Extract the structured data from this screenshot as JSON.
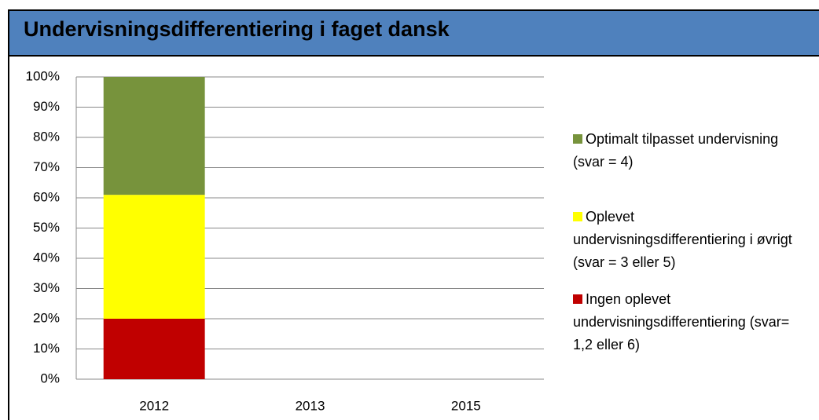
{
  "chart_data": {
    "type": "stacked_bar",
    "title": "Undervisningsdifferentiering i faget dansk",
    "categories": [
      "2012",
      "2013",
      "2015"
    ],
    "series": [
      {
        "name": "Ingen oplevet undervisningsdifferentiering (svar= 1,2 eller 6)",
        "color": "#c00000",
        "values": [
          20,
          null,
          null
        ]
      },
      {
        "name": "Oplevet undervisningsdifferentiering i øvrigt (svar = 3 eller 5)",
        "color": "#ffff00",
        "values": [
          41,
          null,
          null
        ]
      },
      {
        "name": "Optimalt tilpasset undervisning (svar = 4)",
        "color": "#77933c",
        "values": [
          39,
          null,
          null
        ]
      }
    ],
    "ylim": [
      0,
      100
    ],
    "yticks": [
      {
        "value": 0,
        "label": "0%"
      },
      {
        "value": 10,
        "label": "10%"
      },
      {
        "value": 20,
        "label": "20%"
      },
      {
        "value": 30,
        "label": "30%"
      },
      {
        "value": 40,
        "label": "40%"
      },
      {
        "value": 50,
        "label": "50%"
      },
      {
        "value": 60,
        "label": "60%"
      },
      {
        "value": 70,
        "label": "70%"
      },
      {
        "value": 80,
        "label": "80%"
      },
      {
        "value": 90,
        "label": "90%"
      },
      {
        "value": 100,
        "label": "100%"
      }
    ],
    "grid": true,
    "legend": "right"
  }
}
